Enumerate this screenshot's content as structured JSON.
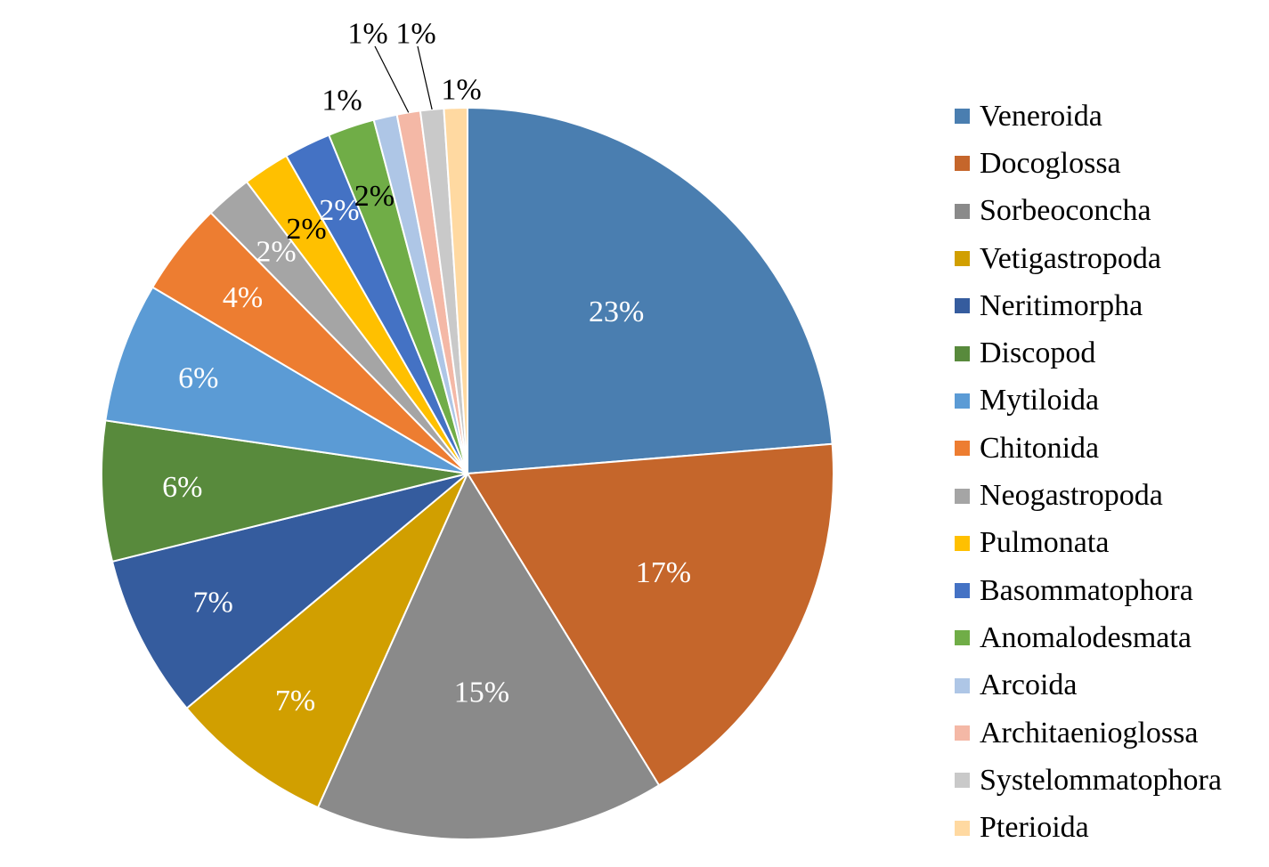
{
  "chart_data": {
    "type": "pie",
    "title": "",
    "legend_position": "right",
    "slices": [
      {
        "name": "Veneroida",
        "value": 23,
        "label": "23%",
        "color": "#4a7eb0",
        "label_color": "#ffffff"
      },
      {
        "name": "Docoglossa",
        "value": 17,
        "label": "17%",
        "color": "#c5662b",
        "label_color": "#ffffff"
      },
      {
        "name": "Sorbeoconcha",
        "value": 15,
        "label": "15%",
        "color": "#8a8a8a",
        "label_color": "#ffffff"
      },
      {
        "name": "Vetigastropoda",
        "value": 7,
        "label": "7%",
        "color": "#d19f00",
        "label_color": "#ffffff"
      },
      {
        "name": "Neritimorpha",
        "value": 7,
        "label": "7%",
        "color": "#355c9e",
        "label_color": "#ffffff"
      },
      {
        "name": "Discopod",
        "value": 6,
        "label": "6%",
        "color": "#588a3c",
        "label_color": "#ffffff"
      },
      {
        "name": "Mytiloida",
        "value": 6,
        "label": "6%",
        "color": "#5b9bd5",
        "label_color": "#ffffff"
      },
      {
        "name": "Chitonida",
        "value": 4,
        "label": "4%",
        "color": "#ed7d31",
        "label_color": "#ffffff"
      },
      {
        "name": "Neogastropoda",
        "value": 2,
        "label": "2%",
        "color": "#a5a5a5",
        "label_color": "#ffffff"
      },
      {
        "name": "Pulmonata",
        "value": 2,
        "label": "2%",
        "color": "#ffc000",
        "label_color": "#000000"
      },
      {
        "name": "Basommatophora",
        "value": 2,
        "label": "2%",
        "color": "#4472c4",
        "label_color": "#ffffff"
      },
      {
        "name": "Anomalodesmata",
        "value": 2,
        "label": "2%",
        "color": "#70ad47",
        "label_color": "#000000"
      },
      {
        "name": "Arcoida",
        "value": 1,
        "label": "1%",
        "color": "#aec6e6",
        "label_color": "#000000"
      },
      {
        "name": "Architaenioglossa",
        "value": 1,
        "label": "1%",
        "color": "#f4b8a6",
        "label_color": "#000000"
      },
      {
        "name": "Systelommatophora",
        "value": 1,
        "label": "1%",
        "color": "#c9c9c9",
        "label_color": "#000000"
      },
      {
        "name": "Pterioida",
        "value": 1,
        "label": "1%",
        "color": "#ffd9a1",
        "label_color": "#000000"
      }
    ]
  }
}
